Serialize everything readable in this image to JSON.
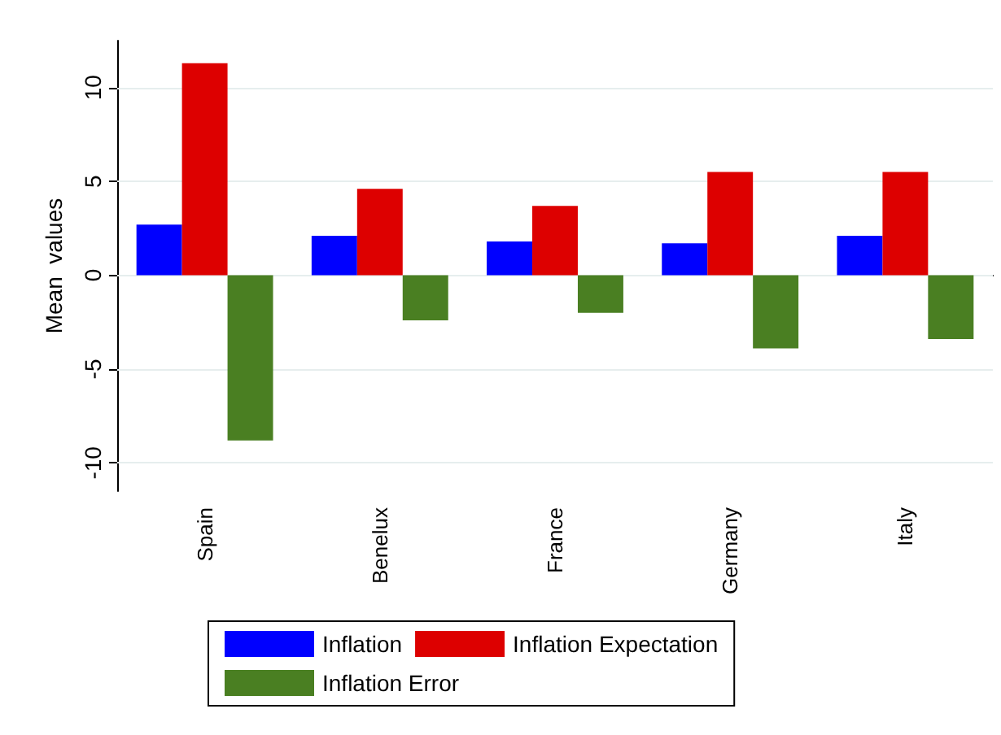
{
  "chart_data": {
    "type": "bar",
    "ylabel": "Mean  values",
    "categories": [
      "Spain",
      "Benelux",
      "France",
      "Germany",
      "Italy"
    ],
    "series": [
      {
        "name": "Inflation",
        "color": "#0000ff",
        "values": [
          2.7,
          2.1,
          1.8,
          1.7,
          2.1
        ]
      },
      {
        "name": "Inflation Expectation",
        "color": "#dd0000",
        "values": [
          11.3,
          4.6,
          3.7,
          5.5,
          5.5
        ]
      },
      {
        "name": "Inflation Error",
        "color": "#4a7f22",
        "values": [
          -8.8,
          -2.4,
          -2.0,
          -3.9,
          -3.4
        ]
      }
    ],
    "ylim": [
      -11.5,
      12.5
    ],
    "yticks": [
      -10,
      -5,
      0,
      5,
      10
    ],
    "grid": "y",
    "legend": "bottom"
  }
}
